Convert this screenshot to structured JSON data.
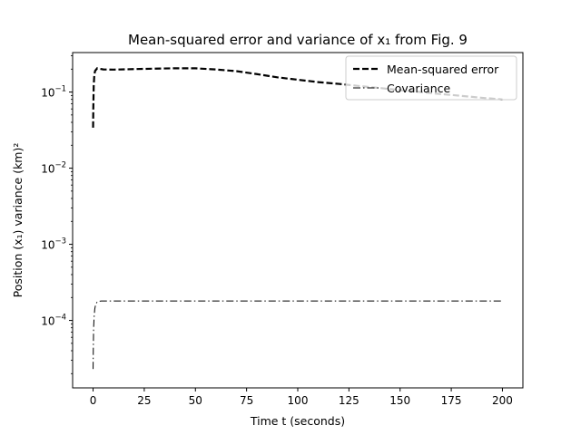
{
  "chart_data": {
    "type": "line",
    "title": "Mean-squared error and variance of x₁ from Fig. 9",
    "xlabel": "Time t (seconds)",
    "ylabel": "Position (x₁) variance (km)²",
    "yscale": "log",
    "xlim": [
      -10,
      210
    ],
    "ylim": [
      1.3e-05,
      0.33
    ],
    "x_ticks": [
      0,
      25,
      50,
      75,
      100,
      125,
      150,
      175,
      200
    ],
    "y_ticks": [
      0.0001,
      0.001,
      0.01,
      0.1
    ],
    "y_tick_labels": [
      "10",
      "10",
      "10",
      "10"
    ],
    "y_tick_exponents": [
      "−4",
      "−3",
      "−2",
      "−1"
    ],
    "legend_position": "top-right",
    "grid": false,
    "series": [
      {
        "name": "Mean-squared error",
        "style": "dashed",
        "color": "#000000",
        "x": [
          0,
          0.1,
          0.3,
          0.6,
          1,
          2,
          5,
          10,
          20,
          30,
          40,
          50,
          60,
          70,
          80,
          90,
          100,
          110,
          120,
          130,
          140,
          150,
          160,
          170,
          180,
          190,
          200
        ],
        "y": [
          0.034,
          0.06,
          0.12,
          0.17,
          0.19,
          0.205,
          0.198,
          0.197,
          0.2,
          0.203,
          0.205,
          0.205,
          0.198,
          0.188,
          0.172,
          0.156,
          0.145,
          0.135,
          0.128,
          0.12,
          0.113,
          0.106,
          0.1,
          0.094,
          0.089,
          0.084,
          0.08
        ]
      },
      {
        "name": "Covariance",
        "style": "dashdot",
        "color": "#000000",
        "x": [
          0,
          0.1,
          0.25,
          0.5,
          0.8,
          1.2,
          1.8,
          2.5,
          4,
          7,
          10,
          50,
          100,
          150,
          200
        ],
        "y": [
          2.3e-05,
          4e-05,
          8e-05,
          0.00011,
          0.00014,
          0.00016,
          0.000172,
          0.000178,
          0.00018,
          0.00018,
          0.00018,
          0.00018,
          0.00018,
          0.00018,
          0.00018
        ]
      }
    ]
  }
}
